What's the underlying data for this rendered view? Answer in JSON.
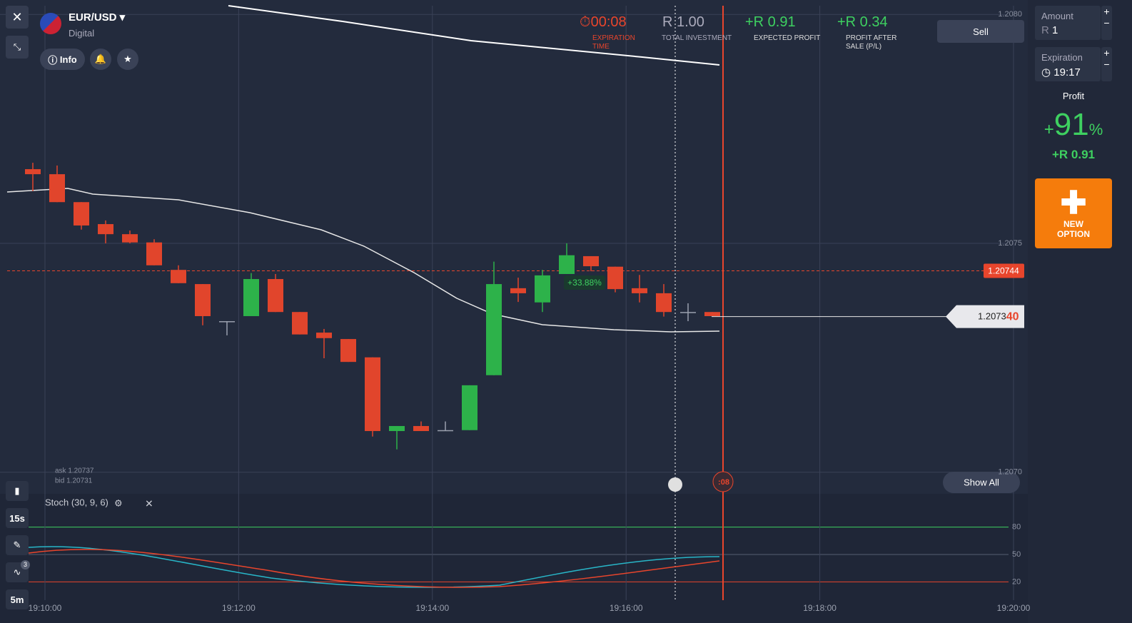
{
  "header": {
    "asset": "EUR/USD",
    "asset_type": "Digital",
    "info": "Info"
  },
  "stats": {
    "timer": "00:08",
    "timer_label": "EXPIRATION TIME",
    "investment": "R 1.00",
    "investment_label": "TOTAL INVESTMENT",
    "expected": "+R 0.91",
    "expected_label": "EXPECTED PROFIT",
    "after_sale": "+R 0.34",
    "after_sale_label": "PROFIT AFTER SALE (P/L)",
    "sell": "Sell"
  },
  "panel": {
    "amount_label": "Amount",
    "amount_currency": "R",
    "amount_value": "1",
    "expiration_label": "Expiration",
    "expiration_value": "19:17",
    "profit_label": "Profit",
    "profit_sign": "+",
    "profit_percent": "91",
    "percent_sign": "%",
    "profit_amount": "+R 0.91",
    "new_option": "NEW OPTION"
  },
  "toolbar": {
    "period": "15s",
    "indicator_count": "3",
    "chart_period": "5m"
  },
  "chart": {
    "ylim": [
      1.206956,
      1.208019
    ],
    "yticks": [
      {
        "value": 1.208,
        "label": "1.2080"
      },
      {
        "value": 1.2075,
        "label": "1.2075"
      },
      {
        "value": 1.207,
        "label": "1.2070"
      }
    ],
    "xticks": [
      "19:10:00",
      "19:12:00",
      "19:14:00",
      "19:16:00",
      "19:18:00",
      "19:20:00"
    ],
    "strike": {
      "value": 1.20744,
      "label": "1.20744"
    },
    "current": {
      "value": 1.20734,
      "main": "1.2073",
      "last": "40"
    },
    "ask": "ask 1.20737",
    "bid": "bid 1.20731",
    "trade_label": "+33.88%",
    "timer_badge": ":08",
    "show_all": "Show All",
    "candles": [
      {
        "open": 1.207662,
        "high": 1.207676,
        "low": 1.207614,
        "close": 1.207651
      },
      {
        "open": 1.207651,
        "high": 1.20767,
        "low": 1.20759,
        "close": 1.20759
      },
      {
        "open": 1.20759,
        "high": 1.20759,
        "low": 1.20753,
        "close": 1.207539
      },
      {
        "open": 1.207542,
        "high": 1.20755,
        "low": 1.2075,
        "close": 1.20752
      },
      {
        "open": 1.20752,
        "high": 1.207528,
        "low": 1.2075,
        "close": 1.207502
      },
      {
        "open": 1.207502,
        "high": 1.207509,
        "low": 1.207452,
        "close": 1.207452
      },
      {
        "open": 1.207442,
        "high": 1.207452,
        "low": 1.207413,
        "close": 1.207413
      },
      {
        "open": 1.207411,
        "high": 1.207411,
        "low": 1.207321,
        "close": 1.207341
      },
      {
        "open": 1.20733,
        "high": 1.20733,
        "low": 1.207299,
        "close": 1.20733
      },
      {
        "open": 1.207341,
        "high": 1.207435,
        "low": 1.207341,
        "close": 1.207422
      },
      {
        "open": 1.207422,
        "high": 1.207433,
        "low": 1.20735,
        "close": 1.20735
      },
      {
        "open": 1.20735,
        "high": 1.20735,
        "low": 1.207301,
        "close": 1.207301
      },
      {
        "open": 1.207305,
        "high": 1.207313,
        "low": 1.207249,
        "close": 1.207293
      },
      {
        "open": 1.207291,
        "high": 1.207291,
        "low": 1.207241,
        "close": 1.207241
      },
      {
        "open": 1.207251,
        "high": 1.207251,
        "low": 1.207078,
        "close": 1.20709
      },
      {
        "open": 1.20709,
        "high": 1.207101,
        "low": 1.20705,
        "close": 1.207101
      },
      {
        "open": 1.207101,
        "high": 1.207111,
        "low": 1.20709,
        "close": 1.20709
      },
      {
        "open": 1.207092,
        "high": 1.207111,
        "low": 1.20709,
        "close": 1.207092
      },
      {
        "open": 1.207092,
        "high": 1.20719,
        "low": 1.207092,
        "close": 1.20719
      },
      {
        "open": 1.207212,
        "high": 1.20746,
        "low": 1.207212,
        "close": 1.207411
      },
      {
        "open": 1.207402,
        "high": 1.207425,
        "low": 1.207372,
        "close": 1.207391
      },
      {
        "open": 1.207371,
        "high": 1.207442,
        "low": 1.20735,
        "close": 1.20743
      },
      {
        "open": 1.207433,
        "high": 1.2075,
        "low": 1.207433,
        "close": 1.207474
      },
      {
        "open": 1.207472,
        "high": 1.207472,
        "low": 1.207439,
        "close": 1.20745
      },
      {
        "open": 1.207449,
        "high": 1.207449,
        "low": 1.207393,
        "close": 1.2074
      },
      {
        "open": 1.207402,
        "high": 1.207431,
        "low": 1.207371,
        "close": 1.207391
      },
      {
        "open": 1.207391,
        "high": 1.207411,
        "low": 1.20734,
        "close": 1.20735
      },
      {
        "open": 1.20735,
        "high": 1.207369,
        "low": 1.20733,
        "close": 1.20735
      },
      {
        "open": 1.20735,
        "high": 1.20735,
        "low": 1.207341,
        "close": 1.207341
      }
    ]
  },
  "indicator": {
    "name": "Stoch (30, 9, 6)",
    "ylim": [
      0,
      100
    ],
    "levels": [
      80,
      50,
      20
    ]
  }
}
